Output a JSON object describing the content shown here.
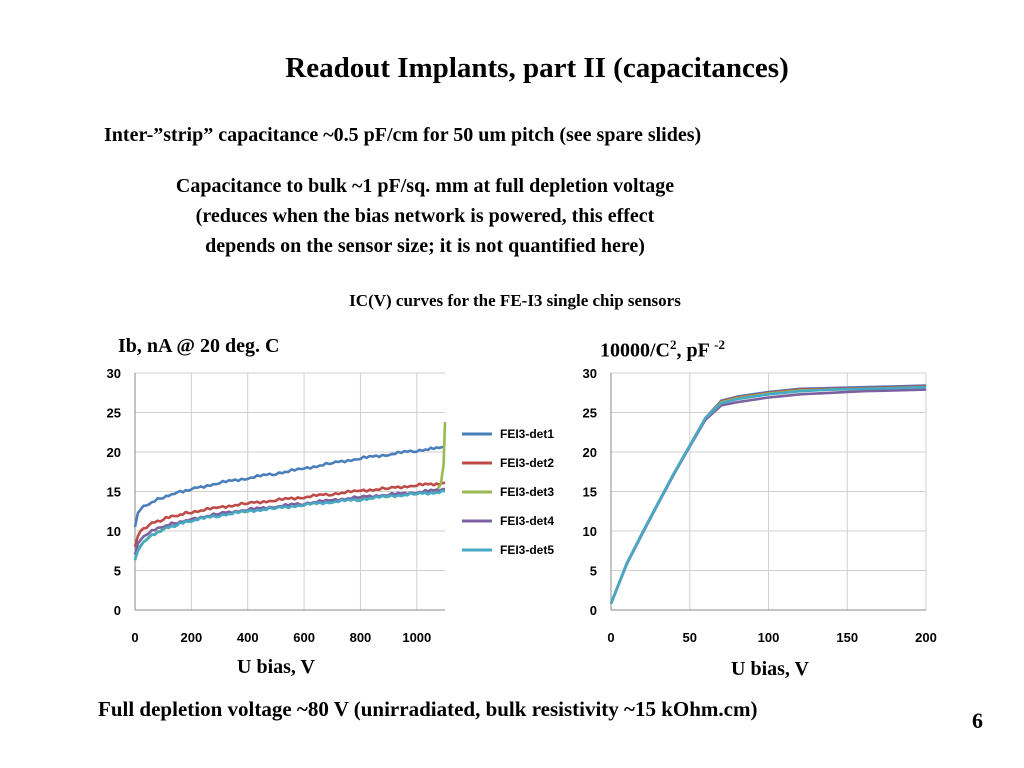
{
  "slide": {
    "title": "Readout Implants, part II (capacitances)",
    "line1": "Inter-”strip” capacitance ~0.5 pF/cm for 50 um pitch (see spare slides)",
    "cap_line1": "Capacitance to bulk ~1 pF/sq. mm at full depletion voltage",
    "cap_line2": "(reduces when the bias network is powered, this effect",
    "cap_line3": "depends on the sensor size; it is not quantified here)",
    "chart_caption": "IC(V) curves for the FE-I3 single chip sensors",
    "footer": "Full depletion voltage ~80 V (unirradiated, bulk resistivity ~15 kOhm.cm)",
    "page_number": "6"
  },
  "chart_labels": {
    "left_ylabel": "Ib, nA @ 20 deg. C",
    "left_xlabel": "U bias, V",
    "right_ylabel_main": "10000/C",
    "right_ylabel_exp": "2",
    "right_ylabel_unit": ", pF",
    "right_ylabel_unit_exp": "-2",
    "right_xlabel": "U bias, V"
  },
  "chart_data": [
    {
      "type": "line",
      "ylabel": "Ib, nA @ 20 deg. C",
      "xlabel": "U bias, V",
      "xlim": [
        0,
        1100
      ],
      "ylim": [
        0,
        30
      ],
      "xticks": [
        "0",
        "200",
        "400",
        "600",
        "800",
        "1000"
      ],
      "yticks": [
        "0",
        "5",
        "10",
        "15",
        "20",
        "25",
        "30"
      ],
      "grid": true,
      "legend_position": "right",
      "series": [
        {
          "name": "FEI3-det1",
          "color": "#4a7ebb",
          "x": [
            0,
            10,
            20,
            50,
            100,
            150,
            200,
            300,
            400,
            500,
            600,
            700,
            800,
            900,
            1000,
            1080,
            1100
          ],
          "y": [
            10.5,
            12.3,
            12.8,
            13.5,
            14.3,
            14.9,
            15.3,
            16.1,
            16.7,
            17.3,
            17.9,
            18.6,
            19.2,
            19.7,
            20.2,
            20.5,
            20.6
          ]
        },
        {
          "name": "FEI3-det2",
          "color": "#be4b48",
          "x": [
            0,
            10,
            20,
            50,
            100,
            150,
            200,
            300,
            400,
            500,
            600,
            700,
            800,
            900,
            1000,
            1080,
            1100
          ],
          "y": [
            8.0,
            9.5,
            10.0,
            10.8,
            11.5,
            12.0,
            12.4,
            13.0,
            13.5,
            13.9,
            14.3,
            14.7,
            15.1,
            15.4,
            15.8,
            16.0,
            16.1
          ]
        },
        {
          "name": "FEI3-det3",
          "color": "#98b954",
          "x": [
            0,
            10,
            20,
            50,
            100,
            150,
            200,
            300,
            400,
            500,
            600,
            700,
            800,
            900,
            1000,
            1070,
            1085,
            1095,
            1100
          ],
          "y": [
            6.5,
            7.8,
            8.3,
            9.3,
            10.3,
            10.9,
            11.4,
            12.1,
            12.6,
            13.0,
            13.4,
            13.8,
            14.1,
            14.5,
            14.8,
            15.1,
            16.0,
            18.5,
            23.8
          ]
        },
        {
          "name": "FEI3-det4",
          "color": "#7d60a0",
          "x": [
            0,
            10,
            20,
            50,
            100,
            150,
            200,
            300,
            400,
            500,
            600,
            700,
            800,
            900,
            1000,
            1080,
            1100
          ],
          "y": [
            7.0,
            8.4,
            8.9,
            9.8,
            10.6,
            11.1,
            11.5,
            12.2,
            12.7,
            13.1,
            13.5,
            13.9,
            14.3,
            14.6,
            14.9,
            15.2,
            15.3
          ]
        },
        {
          "name": "FEI3-det5",
          "color": "#46aac5",
          "x": [
            0,
            10,
            20,
            50,
            100,
            150,
            200,
            300,
            400,
            500,
            600,
            700,
            800,
            900,
            1000,
            1080,
            1100
          ],
          "y": [
            6.3,
            7.6,
            8.2,
            9.3,
            10.2,
            10.8,
            11.3,
            12.0,
            12.5,
            12.9,
            13.3,
            13.7,
            14.0,
            14.4,
            14.7,
            14.9,
            15.0
          ]
        }
      ]
    },
    {
      "type": "line",
      "ylabel": "10000/C2, pF -2",
      "xlabel": "U bias, V",
      "xlim": [
        0,
        200
      ],
      "ylim": [
        0,
        30
      ],
      "xticks": [
        "0",
        "50",
        "100",
        "150",
        "200"
      ],
      "yticks": [
        "0",
        "5",
        "10",
        "15",
        "20",
        "25",
        "30"
      ],
      "grid": true,
      "series": [
        {
          "name": "FEI3-det1",
          "color": "#4a7ebb",
          "x": [
            0,
            10,
            20,
            30,
            40,
            50,
            60,
            70,
            80,
            90,
            100,
            110,
            120,
            140,
            160,
            180,
            200
          ],
          "y": [
            0.8,
            5.9,
            9.8,
            13.6,
            17.3,
            20.8,
            24.3,
            26.5,
            27.0,
            27.3,
            27.6,
            27.8,
            28.0,
            28.1,
            28.2,
            28.3,
            28.4
          ]
        },
        {
          "name": "FEI3-det2",
          "color": "#be4b48",
          "x": [
            0,
            10,
            20,
            30,
            40,
            50,
            60,
            70,
            80,
            90,
            100,
            110,
            120,
            140,
            160,
            180,
            200
          ],
          "y": [
            0.8,
            5.9,
            9.8,
            13.6,
            17.3,
            20.8,
            24.3,
            26.4,
            26.9,
            27.2,
            27.5,
            27.7,
            27.9,
            28.0,
            28.1,
            28.2,
            28.3
          ]
        },
        {
          "name": "FEI3-det3",
          "color": "#98b954",
          "x": [
            0,
            10,
            20,
            30,
            40,
            50,
            60,
            70,
            80,
            90,
            100,
            110,
            120,
            140,
            160,
            180,
            200
          ],
          "y": [
            0.8,
            5.9,
            9.8,
            13.6,
            17.3,
            20.8,
            24.3,
            26.3,
            26.8,
            27.1,
            27.4,
            27.6,
            27.8,
            27.9,
            28.0,
            28.1,
            28.2
          ]
        },
        {
          "name": "FEI3-det4",
          "color": "#7d60a0",
          "x": [
            0,
            10,
            20,
            30,
            40,
            50,
            60,
            70,
            80,
            90,
            100,
            110,
            120,
            140,
            160,
            180,
            200
          ],
          "y": [
            0.8,
            5.8,
            9.7,
            13.5,
            17.2,
            20.7,
            24.1,
            25.9,
            26.3,
            26.6,
            26.9,
            27.1,
            27.3,
            27.5,
            27.7,
            27.8,
            27.9
          ]
        },
        {
          "name": "FEI3-det5",
          "color": "#46aac5",
          "x": [
            0,
            10,
            20,
            30,
            40,
            50,
            60,
            70,
            80,
            90,
            100,
            110,
            120,
            140,
            160,
            180,
            200
          ],
          "y": [
            0.8,
            5.9,
            9.8,
            13.6,
            17.3,
            20.8,
            24.3,
            26.2,
            26.7,
            27.0,
            27.3,
            27.5,
            27.7,
            27.9,
            28.0,
            28.1,
            28.2
          ]
        }
      ]
    }
  ]
}
